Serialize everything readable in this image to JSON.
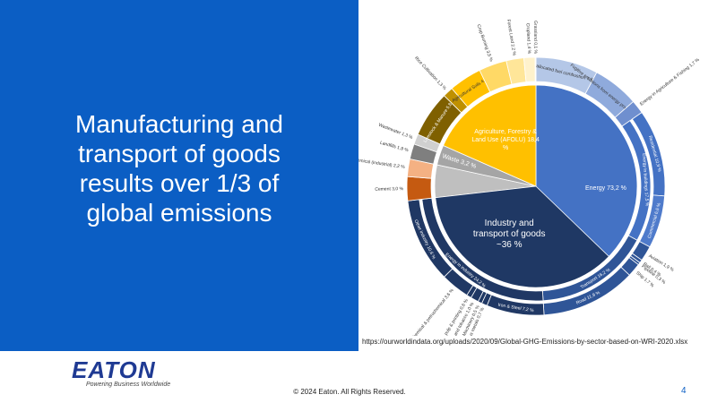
{
  "slide": {
    "title": "Manufacturing and transport of goods results over 1/3 of global emissions",
    "source": "https://ourworldindata.org/uploads/2020/09/Global-GHG-Emissions-by-sector-based-on-WRI-2020.xlsx",
    "logo": "EATON",
    "tagline": "Powering Business Worldwide",
    "copyright": "© 2024 Eaton. All Rights Reserved.",
    "page": "4"
  },
  "chart_data": {
    "type": "sunburst",
    "highlight": {
      "label": "Industry and transport of goods ~36 %",
      "value": 36,
      "color": "#1f3864"
    },
    "nodes": [
      {
        "label": "Energy 73,2 %",
        "value": 73.2,
        "color": "#4472c4",
        "children": [
          {
            "label": "Unallocated fuel combustion 7,8 %",
            "value": 7.8,
            "color": "#b4c7e7"
          },
          {
            "label": "Fugitive emissions from energy production 5,8 %",
            "value": 5.8,
            "color": "#8faadc"
          },
          {
            "label": "Energy in Agriculture & Fishing 1,7 %",
            "value": 1.7,
            "color": "#6f8fcf"
          },
          {
            "label": "Energy in buildings 17,5 %",
            "value": 17.5,
            "color": "#4472c4",
            "children": [
              {
                "label": "Residential 10,9 %",
                "value": 10.9,
                "color": "#4472c4"
              },
              {
                "label": "Commercial 6,6 %",
                "value": 6.6,
                "color": "#4f7bcb"
              }
            ]
          },
          {
            "label": "Transport 16,2 %",
            "value": 16.2,
            "color": "#2f5597",
            "children": [
              {
                "label": "Aviation 1,9 %",
                "value": 1.9,
                "color": "#2f5597"
              },
              {
                "label": "Rail 0,4 %",
                "value": 0.4,
                "color": "#2f5597"
              },
              {
                "label": "Pipeline 0,3 %",
                "value": 0.3,
                "color": "#2f5597"
              },
              {
                "label": "Ship 1,7 %",
                "value": 1.7,
                "color": "#2f5597"
              },
              {
                "label": "Road 11,9 %",
                "value": 11.9,
                "color": "#2f5597"
              }
            ]
          },
          {
            "label": "Energy in industry 24,2 %",
            "value": 24.2,
            "color": "#203864",
            "children": [
              {
                "label": "Iron & Steel 7,2 %",
                "value": 7.2,
                "color": "#203864"
              },
              {
                "label": "Non-ferrous metals 0,7 %",
                "value": 0.7,
                "color": "#203864"
              },
              {
                "label": "Machinery 0,5 %",
                "value": 0.5,
                "color": "#203864"
              },
              {
                "label": "Food and tobacco 1,0 %",
                "value": 1.0,
                "color": "#203864"
              },
              {
                "label": "Paper, pulp & printing 0,6 %",
                "value": 0.6,
                "color": "#203864"
              },
              {
                "label": "Chemical & petrochemical 3,6 %",
                "value": 3.6,
                "color": "#203864"
              },
              {
                "label": "Other industry 10,6 %",
                "value": 10.6,
                "color": "#203864"
              }
            ]
          }
        ]
      },
      {
        "label": null,
        "value": 5.2,
        "color": "#bfbfbf",
        "children": [
          {
            "label": "Cement 3,0 %",
            "value": 3.0,
            "color": "#c55a11"
          },
          {
            "label": "Chemical & petrochemical (industrial) 2,2 %",
            "value": 2.2,
            "color": "#f4b183"
          }
        ]
      },
      {
        "label": "Waste 3,2 %",
        "value": 3.2,
        "color": "#a5a5a5",
        "children": [
          {
            "label": "Landfills 1,9 %",
            "value": 1.9,
            "color": "#7f7f7f"
          },
          {
            "label": "Wastewater 1,3 %",
            "value": 1.3,
            "color": "#d0d0d0"
          }
        ]
      },
      {
        "label": "Agriculture, Forestry & Land Use (AFOLU) 18,4 %",
        "value": 18.4,
        "color": "#ffc000",
        "children": [
          {
            "label": "Livestock & Manure 5,8 %",
            "value": 5.8,
            "color": "#7f6000"
          },
          {
            "label": "Rice Cultivation 1,3 %",
            "value": 1.3,
            "color": "#bf9000"
          },
          {
            "label": "Agricultural Soils 4,1 %",
            "value": 4.1,
            "color": "#ffc000"
          },
          {
            "label": "Crop Burning 3,5 %",
            "value": 3.5,
            "color": "#ffd966"
          },
          {
            "label": "Forest Land 2,2 %",
            "value": 2.2,
            "color": "#ffe699"
          },
          {
            "label": "Cropland 1,4 %",
            "value": 1.4,
            "color": "#fff2cc"
          },
          {
            "label": "Grassland 0,1 %",
            "value": 0.1,
            "color": "#fff2cc"
          }
        ]
      }
    ]
  }
}
